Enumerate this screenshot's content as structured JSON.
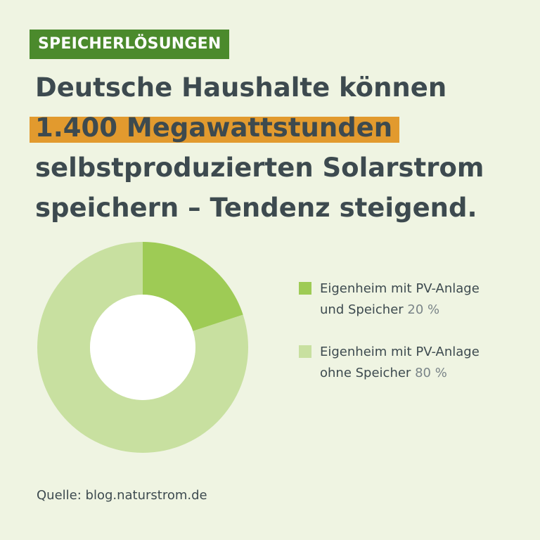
{
  "tag": "SPEICHERLÖSUNGEN",
  "headline": {
    "line1": "Deutsche Haushalte können",
    "highlight": "1.400 Megawattstunden",
    "line3": "selbstproduzierten Solarstrom",
    "line4": "speichern – Tendenz steigend."
  },
  "chart_data": {
    "type": "pie",
    "donut": true,
    "series": [
      {
        "name": "Eigenheim mit PV-Anlage und Speicher",
        "value": 20,
        "color": "#9ecb55"
      },
      {
        "name": "Eigenheim mit PV-Anlage ohne Speicher",
        "value": 80,
        "color": "#c8e0a0"
      }
    ]
  },
  "legend": [
    {
      "line1": "Eigenheim mit PV-Anlage",
      "line2": "und Speicher",
      "pct": "20 %",
      "color": "#9ecb55"
    },
    {
      "line1": "Eigenheim mit PV-Anlage",
      "line2": "ohne Speicher",
      "pct": "80 %",
      "color": "#c8e0a0"
    }
  ],
  "source": "Quelle: blog.naturstrom.de"
}
